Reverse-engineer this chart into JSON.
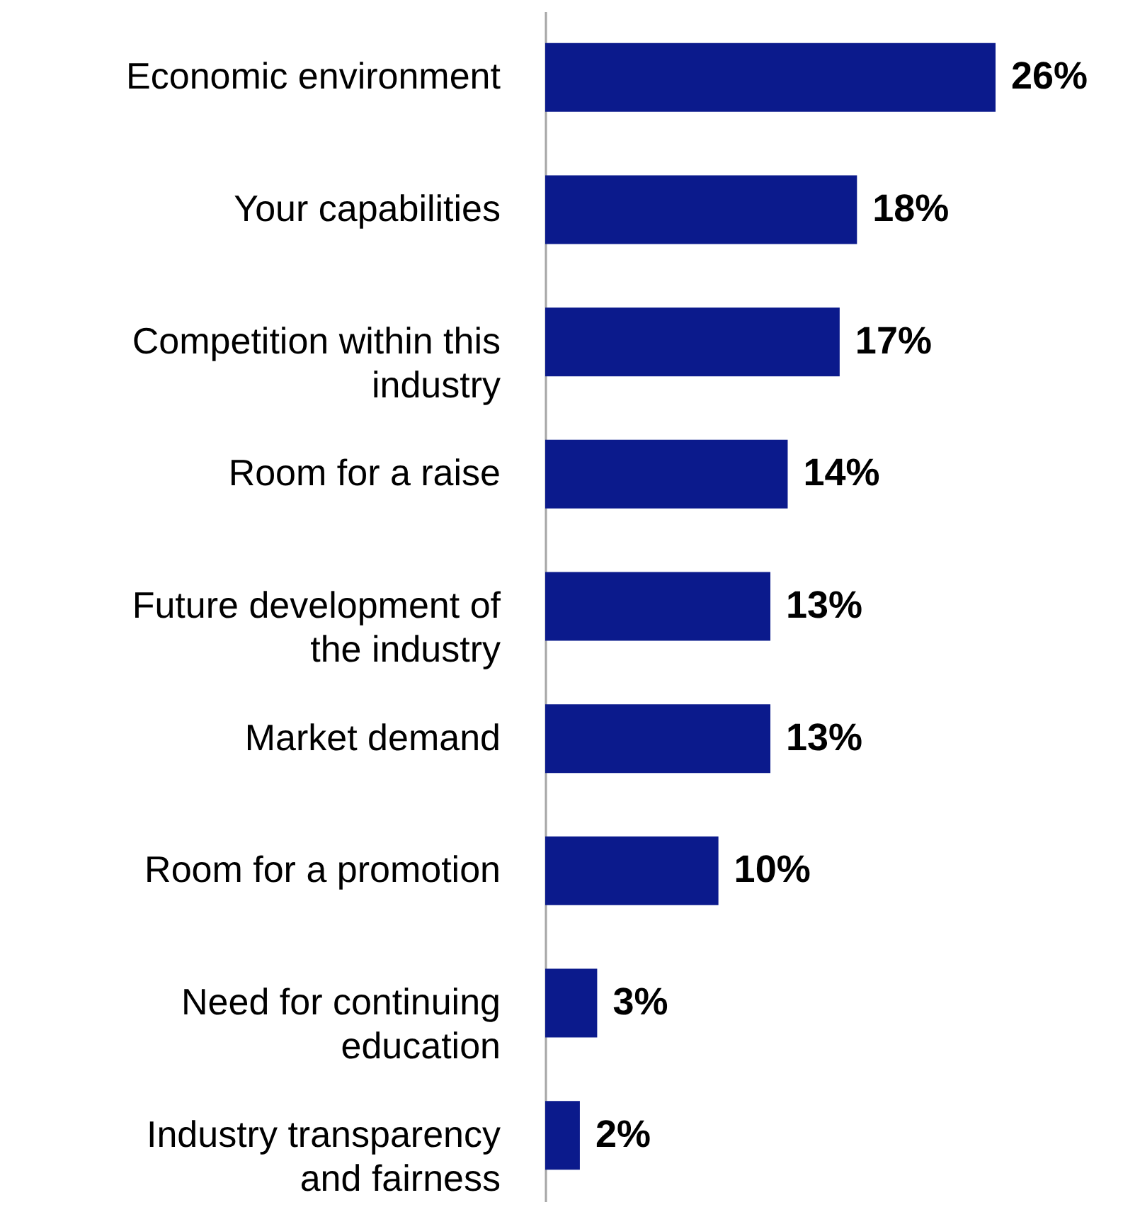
{
  "chart_data": {
    "type": "bar",
    "orientation": "horizontal",
    "categories": [
      "Economic environment",
      "Your capabilities",
      "Competition within this industry",
      "Room for a raise",
      "Future development of the industry",
      "Market demand",
      "Room for a promotion",
      "Need for continuing education",
      "Industry transparency and fairness"
    ],
    "values": [
      26,
      18,
      17,
      14,
      13,
      13,
      10,
      3,
      2
    ],
    "value_labels": [
      "26%",
      "18%",
      "17%",
      "14%",
      "13%",
      "13%",
      "10%",
      "3%",
      "2%"
    ],
    "color": "#0b1a8c"
  }
}
